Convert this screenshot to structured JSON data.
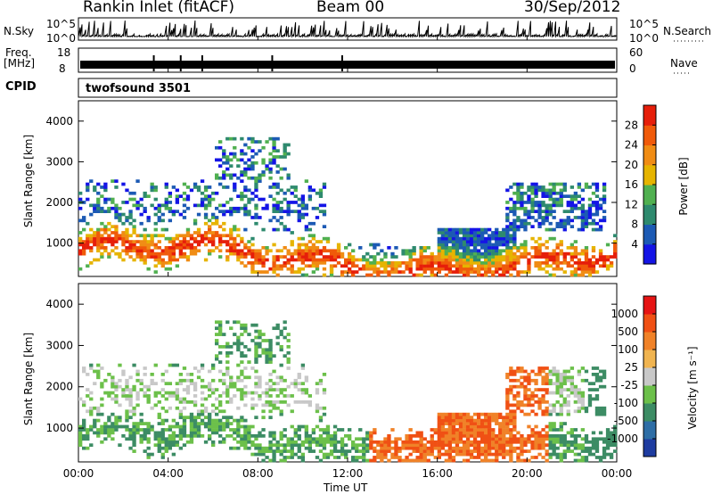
{
  "header": {
    "site": "Rankin Inlet (fitACF)",
    "beam": "Beam 00",
    "date": "30/Sep/2012"
  },
  "aux": {
    "nsky_label": "N.Sky",
    "nsky_ticks": [
      "10^5",
      "10^0"
    ],
    "nsearch_label": "N.Search",
    "freq_label": "Freq.",
    "freq_unit": "[MHz]",
    "freq_ticks": [
      "18",
      "8"
    ],
    "nave_label": "Nave",
    "nave_ticks": [
      "60",
      "0"
    ],
    "cpid_label": "CPID",
    "cpid_value": "twofsound 3501"
  },
  "chart_data": [
    {
      "type": "heatmap",
      "name": "power",
      "ylabel": "Slant Range [km]",
      "xlabel": "",
      "x_ticks": [
        "00:00",
        "04:00",
        "08:00",
        "12:00",
        "16:00",
        "20:00",
        "00:00"
      ],
      "x_range_hours": [
        0,
        24
      ],
      "y_ticks": [
        1000,
        2000,
        3000,
        4000
      ],
      "ylim": [
        180,
        4500
      ],
      "colorbar": {
        "label": "Power [dB]",
        "ticks": [
          "4",
          "8",
          "12",
          "16",
          "20",
          "24",
          "28"
        ],
        "colors": [
          "#1414e6",
          "#1c5ab4",
          "#2e8a6e",
          "#50b050",
          "#e6b400",
          "#f08c14",
          "#f05a0a",
          "#e61e0a"
        ]
      }
    },
    {
      "type": "heatmap",
      "name": "velocity",
      "ylabel": "Slant Range [km]",
      "xlabel": "Time UT",
      "x_ticks": [
        "00:00",
        "04:00",
        "08:00",
        "12:00",
        "16:00",
        "20:00",
        "00:00"
      ],
      "x_range_hours": [
        0,
        24
      ],
      "y_ticks": [
        1000,
        2000,
        3000,
        4000
      ],
      "ylim": [
        180,
        4500
      ],
      "colorbar": {
        "label": "Velocity [m s⁻¹]",
        "ticks": [
          "1000",
          "500",
          "100",
          "25",
          "-25",
          "-100",
          "-500",
          "-1000"
        ],
        "colors": [
          "#1e3ca0",
          "#2e6ea6",
          "#3c8c64",
          "#6cc04a",
          "#c8c8c8",
          "#f0b450",
          "#f08228",
          "#f05014",
          "#e61414"
        ]
      }
    }
  ]
}
